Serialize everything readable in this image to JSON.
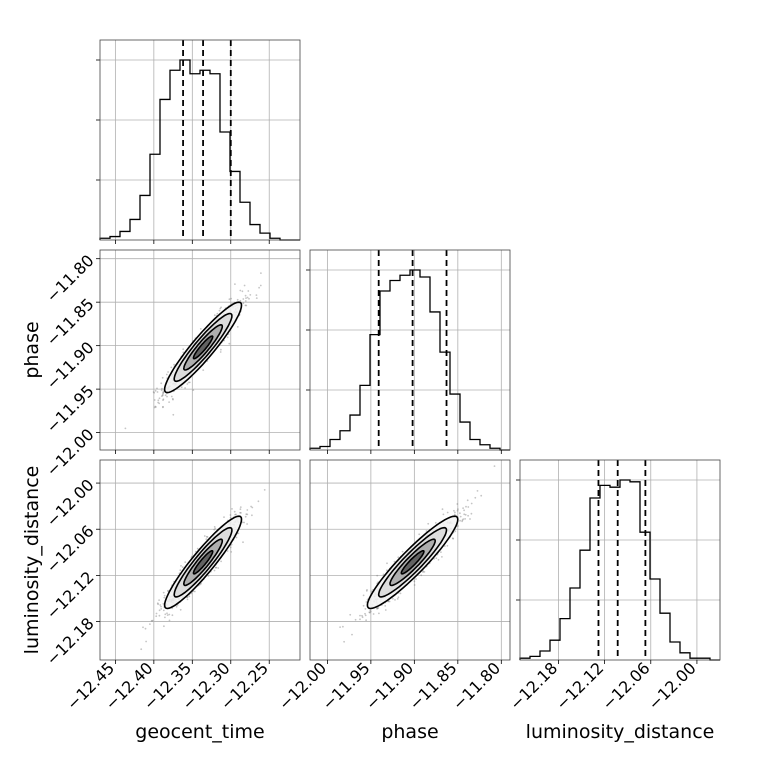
{
  "chart_data": {
    "type": "corner",
    "parameters": [
      "geocent_time",
      "phase",
      "luminosity_distance"
    ],
    "axis_labels": {
      "geocent_time": "geocent_time",
      "phase": "phase",
      "luminosity_distance": "luminosity_distance"
    },
    "ranges": {
      "geocent_time": [
        -12.47,
        -12.21
      ],
      "phase": [
        -12.02,
        -11.79
      ],
      "luminosity_distance": [
        -12.23,
        -11.97
      ]
    },
    "ticks": {
      "geocent_time": [
        {
          "v": -12.45,
          "label": "−12.45"
        },
        {
          "v": -12.4,
          "label": "−12.40"
        },
        {
          "v": -12.35,
          "label": "−12.35"
        },
        {
          "v": -12.3,
          "label": "−12.30"
        },
        {
          "v": -12.25,
          "label": "−12.25"
        }
      ],
      "phase": [
        {
          "v": -12.0,
          "label": "−12.00"
        },
        {
          "v": -11.95,
          "label": "−11.95"
        },
        {
          "v": -11.9,
          "label": "−11.90"
        },
        {
          "v": -11.85,
          "label": "−11.85"
        },
        {
          "v": -11.8,
          "label": "−11.80"
        }
      ],
      "luminosity_distance": [
        {
          "v": -12.18,
          "label": "−12.18"
        },
        {
          "v": -12.12,
          "label": "−12.12"
        },
        {
          "v": -12.06,
          "label": "−12.06"
        },
        {
          "v": -12.0,
          "label": "−12.00"
        }
      ]
    },
    "histograms": {
      "geocent_time": {
        "bin_edges": [
          -12.47,
          -12.457,
          -12.444,
          -12.431,
          -12.418,
          -12.405,
          -12.392,
          -12.379,
          -12.366,
          -12.353,
          -12.34,
          -12.327,
          -12.314,
          -12.301,
          -12.288,
          -12.275,
          -12.262,
          -12.249,
          -12.236,
          -12.223,
          -12.21
        ],
        "counts": [
          1,
          2,
          5,
          12,
          26,
          50,
          82,
          99,
          105,
          97,
          99,
          97,
          63,
          40,
          22,
          9,
          4,
          1,
          0,
          0
        ],
        "quantiles": [
          -12.362,
          -12.336,
          -12.3
        ]
      },
      "phase": {
        "bin_edges": [
          -12.02,
          -12.0085,
          -11.997,
          -11.9855,
          -11.974,
          -11.9625,
          -11.951,
          -11.9395,
          -11.928,
          -11.9165,
          -11.905,
          -11.8935,
          -11.882,
          -11.8705,
          -11.859,
          -11.8475,
          -11.836,
          -11.8245,
          -11.813,
          -11.8015,
          -11.79
        ],
        "counts": [
          1,
          2,
          6,
          11,
          20,
          37,
          66,
          91,
          97,
          100,
          103,
          99,
          79,
          56,
          32,
          16,
          6,
          3,
          1,
          0
        ],
        "quantiles": [
          -11.941,
          -11.902,
          -11.863
        ]
      },
      "luminosity_distance": {
        "bin_edges": [
          -12.23,
          -12.217,
          -12.204,
          -12.191,
          -12.178,
          -12.165,
          -12.152,
          -12.139,
          -12.126,
          -12.113,
          -12.1,
          -12.087,
          -12.074,
          -12.061,
          -12.048,
          -12.035,
          -12.022,
          -12.009,
          -11.996,
          -11.983,
          -11.97
        ],
        "counts": [
          1,
          2,
          5,
          11,
          23,
          40,
          61,
          90,
          97,
          96,
          100,
          99,
          71,
          45,
          26,
          10,
          4,
          1,
          1,
          0
        ],
        "quantiles": [
          -12.128,
          -12.103,
          -12.067
        ]
      }
    },
    "pairs": [
      {
        "x": "geocent_time",
        "y": "phase",
        "mean": [
          -12.336,
          -11.902
        ],
        "sd": [
          0.025,
          0.026
        ],
        "rho": 0.93
      },
      {
        "x": "geocent_time",
        "y": "luminosity_distance",
        "mean": [
          -12.336,
          -12.103
        ],
        "sd": [
          0.025,
          0.03
        ],
        "rho": 0.93
      },
      {
        "x": "phase",
        "y": "luminosity_distance",
        "mean": [
          -11.902,
          -12.103
        ],
        "sd": [
          0.026,
          0.03
        ],
        "rho": 0.93
      }
    ],
    "contour_levels_sigma": [
      0.5,
      1.0,
      1.5,
      2.0
    ],
    "grid": true,
    "colors": {
      "line": "#000000",
      "scatter": "#7f7f7f",
      "grid": "#b0b0b0"
    }
  }
}
